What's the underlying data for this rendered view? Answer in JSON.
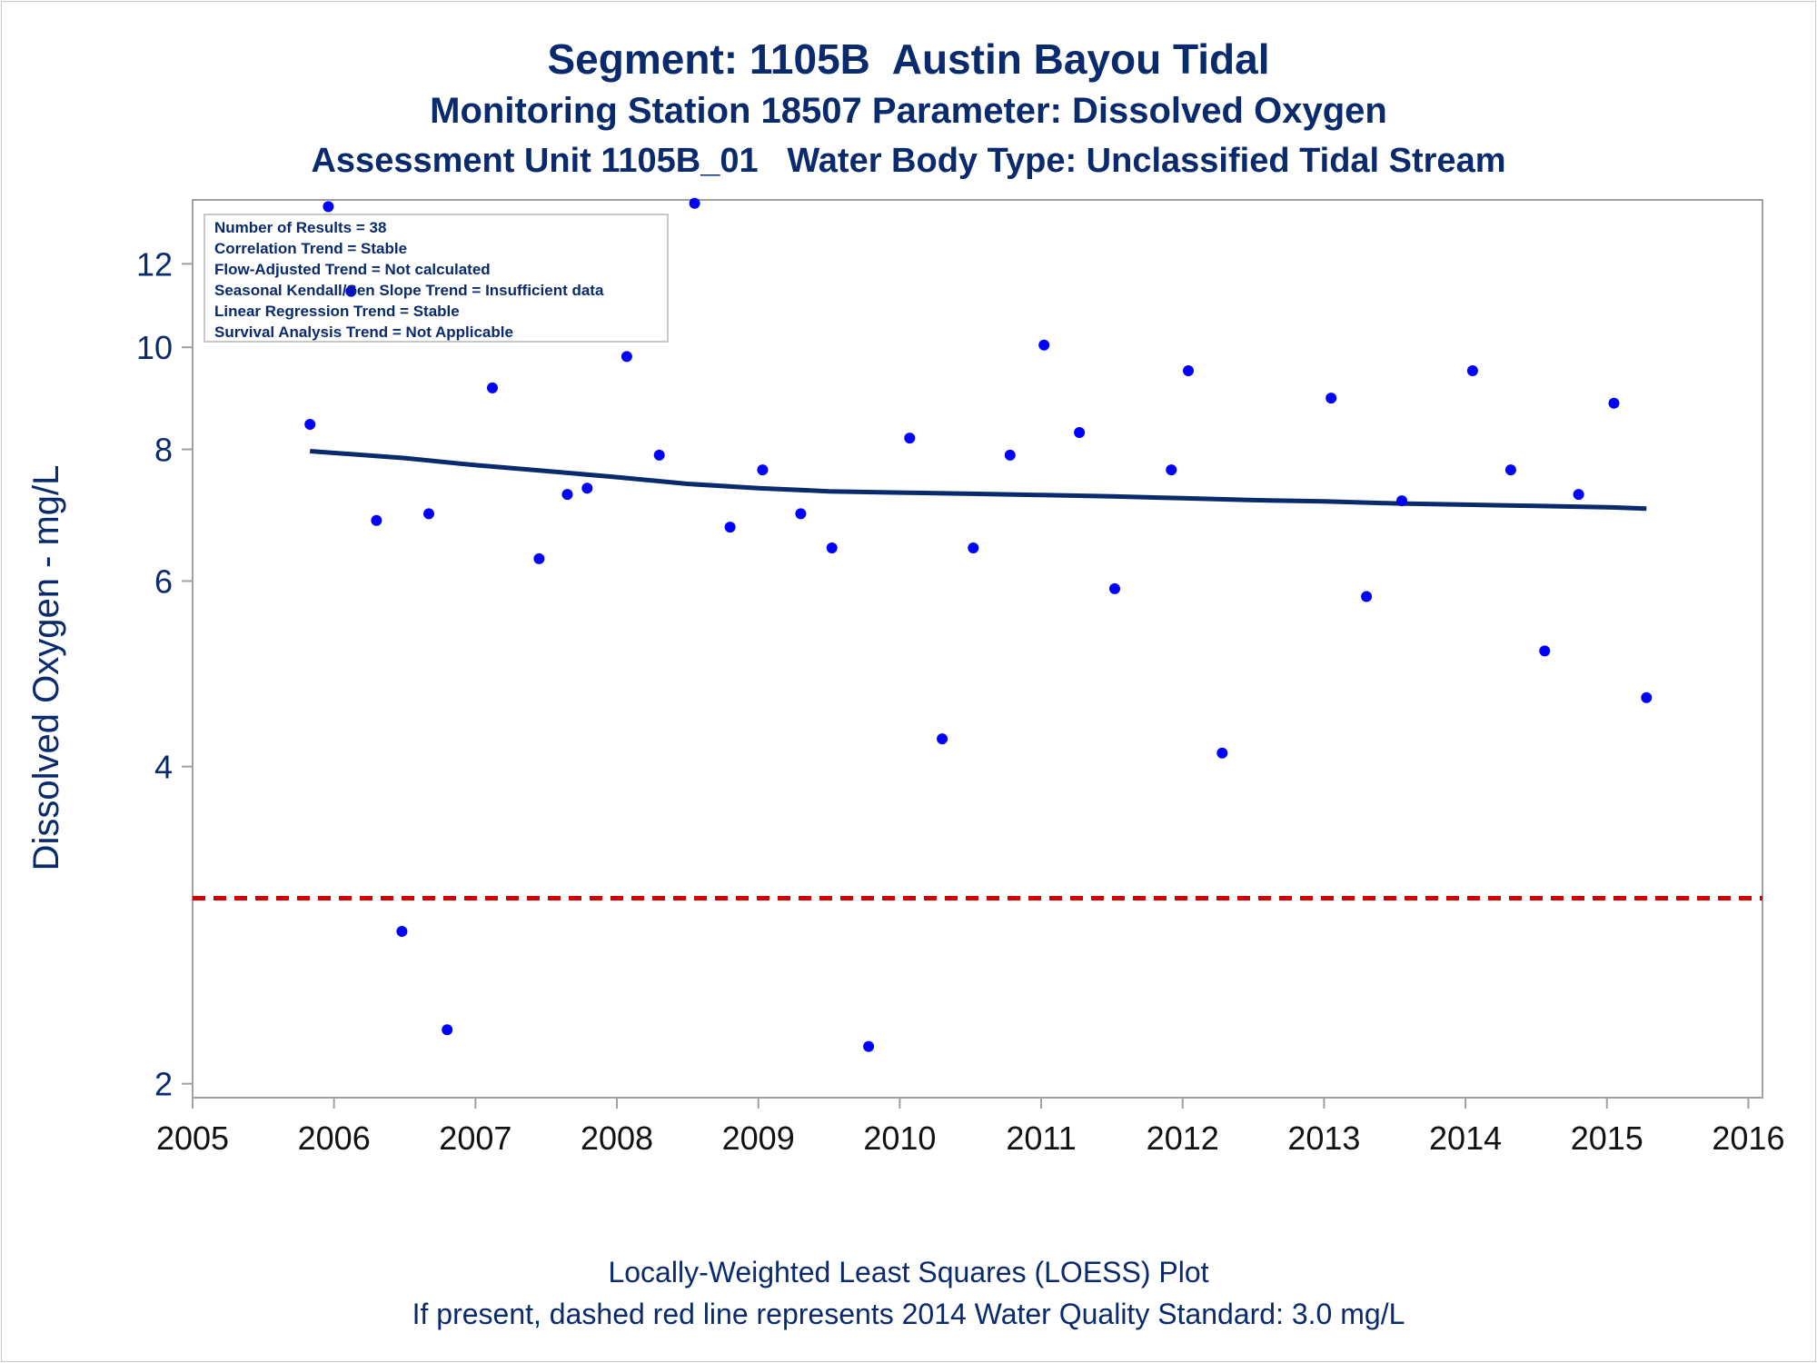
{
  "chart_data": {
    "type": "scatter",
    "title": "Segment: 1105B  Austin Bayou Tidal",
    "subtitle_lines": [
      "Monitoring Station 18507 Parameter: Dissolved Oxygen",
      "Assessment Unit 1105B_01   Water Body Type: Unclassified Tidal Stream"
    ],
    "ylabel": "Dissolved Oxygen - mg/L",
    "xlabel": "",
    "y_scale": "log",
    "ylim": [
      1.94,
      13.8
    ],
    "xlim": [
      2005.0,
      2016.1
    ],
    "x_ticks": [
      2005,
      2006,
      2007,
      2008,
      2009,
      2010,
      2011,
      2012,
      2013,
      2014,
      2015,
      2016
    ],
    "y_ticks": [
      2,
      4,
      6,
      8,
      10,
      12
    ],
    "grid": false,
    "legend_position": "top-left",
    "stats_box": [
      "Number of Results = 38",
      "Correlation Trend = Stable",
      "Flow-Adjusted Trend = Not calculated",
      "Seasonal Kendall/Sen Slope Trend = Insufficient data",
      "Linear Regression Trend = Stable",
      "Survival Analysis Trend = Not Applicable"
    ],
    "series": [
      {
        "kind": "points",
        "color": "#0000ff",
        "points": [
          [
            2005.83,
            8.45
          ],
          [
            2005.96,
            13.6
          ],
          [
            2006.12,
            11.3
          ],
          [
            2006.3,
            6.85
          ],
          [
            2006.48,
            2.79
          ],
          [
            2006.67,
            6.95
          ],
          [
            2006.8,
            2.25
          ],
          [
            2007.12,
            9.15
          ],
          [
            2007.45,
            6.3
          ],
          [
            2007.65,
            7.25
          ],
          [
            2007.79,
            7.35
          ],
          [
            2008.07,
            9.8
          ],
          [
            2008.3,
            7.9
          ],
          [
            2008.55,
            13.7
          ],
          [
            2008.8,
            6.75
          ],
          [
            2009.03,
            7.65
          ],
          [
            2009.3,
            6.95
          ],
          [
            2009.52,
            6.45
          ],
          [
            2009.78,
            2.17
          ],
          [
            2010.07,
            8.2
          ],
          [
            2010.3,
            4.25
          ],
          [
            2010.52,
            6.45
          ],
          [
            2010.78,
            7.9
          ],
          [
            2011.02,
            10.05
          ],
          [
            2011.27,
            8.3
          ],
          [
            2011.52,
            5.9
          ],
          [
            2011.92,
            7.65
          ],
          [
            2012.04,
            9.5
          ],
          [
            2012.28,
            4.12
          ],
          [
            2013.05,
            8.95
          ],
          [
            2013.3,
            5.8
          ],
          [
            2013.55,
            7.15
          ],
          [
            2014.05,
            9.5
          ],
          [
            2014.32,
            7.65
          ],
          [
            2014.56,
            5.15
          ],
          [
            2014.8,
            7.25
          ],
          [
            2015.05,
            8.85
          ],
          [
            2015.28,
            4.65
          ]
        ]
      },
      {
        "kind": "loess",
        "name": "Locally-Weighted Least Squares (LOESS) Plot",
        "color": "#0a2a6e",
        "points": [
          [
            2005.83,
            7.97
          ],
          [
            2006.5,
            7.85
          ],
          [
            2007.0,
            7.73
          ],
          [
            2007.5,
            7.63
          ],
          [
            2008.0,
            7.53
          ],
          [
            2008.5,
            7.42
          ],
          [
            2009.0,
            7.35
          ],
          [
            2009.5,
            7.3
          ],
          [
            2010.0,
            7.28
          ],
          [
            2010.5,
            7.26
          ],
          [
            2011.0,
            7.24
          ],
          [
            2011.5,
            7.22
          ],
          [
            2012.0,
            7.19
          ],
          [
            2012.5,
            7.16
          ],
          [
            2013.0,
            7.14
          ],
          [
            2013.5,
            7.11
          ],
          [
            2014.0,
            7.09
          ],
          [
            2014.5,
            7.07
          ],
          [
            2015.0,
            7.05
          ],
          [
            2015.28,
            7.03
          ]
        ]
      },
      {
        "kind": "reference",
        "name": "2014 Water Quality Standard",
        "color": "#d40000",
        "value": 3.0
      }
    ]
  },
  "footnotes": [
    "Locally-Weighted Least Squares (LOESS) Plot",
    "If present, dashed red line represents 2014 Water Quality Standard: 3.0 mg/L"
  ],
  "colors": {
    "text": "#0a2a6e",
    "points": "#0000ff",
    "loess": "#0a2a6e",
    "standard": "#d40000",
    "axis": "#a0a0a0"
  }
}
